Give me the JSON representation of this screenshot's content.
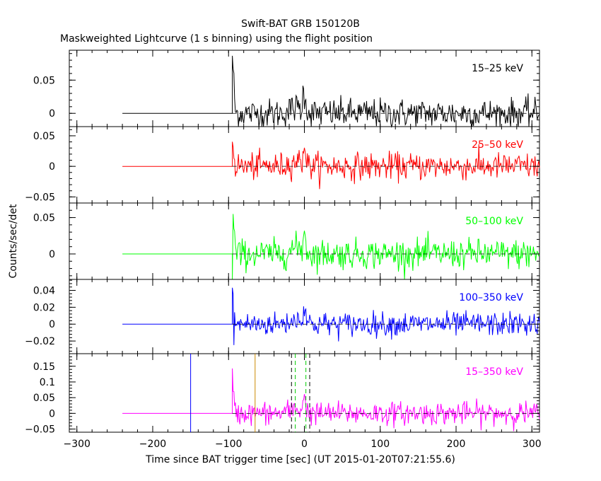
{
  "title": "Swift-BAT GRB 150120B",
  "subtitle": "Maskweighted Lightcurve (1 s binning) using the flight position",
  "xlabel": "Time since BAT trigger time [sec] (UT 2015-01-20T07:21:55.6)",
  "ylabel": "Counts/sec/det",
  "chart_data": {
    "type": "line",
    "xlim": [
      -310,
      310
    ],
    "x_ticks": [
      -300,
      -200,
      -100,
      0,
      100,
      200,
      300
    ],
    "data_start": -240,
    "burst_start": -95,
    "panels": [
      {
        "name": "15-25 keV",
        "label": "15–25 keV",
        "color": "#000000",
        "ylim": [
          -0.02,
          0.095
        ],
        "y_ticks": [
          0,
          0.05
        ],
        "y_tick_labels": [
          "0",
          "0.05"
        ],
        "noise": 0.011,
        "spike": 0.09
      },
      {
        "name": "25-50 keV",
        "label": "25–50 keV",
        "color": "#ff0000",
        "ylim": [
          -0.06,
          0.065
        ],
        "y_ticks": [
          -0.05,
          0,
          0.05
        ],
        "y_tick_labels": [
          "−0.05",
          "0",
          "0.05"
        ],
        "noise": 0.011,
        "spike": 0.06
      },
      {
        "name": "50-100 keV",
        "label": "50–100 keV",
        "color": "#00ff00",
        "ylim": [
          -0.035,
          0.07
        ],
        "y_ticks": [
          0,
          0.05
        ],
        "y_tick_labels": [
          "0",
          "0.05"
        ],
        "noise": 0.01,
        "spike": 0.06
      },
      {
        "name": "100-350 keV",
        "label": "100–350 keV",
        "color": "#0000ff",
        "ylim": [
          -0.035,
          0.053
        ],
        "y_ticks": [
          -0.02,
          0,
          0.02,
          0.04
        ],
        "y_tick_labels": [
          "−0.02",
          "0",
          "0.02",
          "0.04"
        ],
        "noise": 0.007,
        "spike": 0.045
      },
      {
        "name": "15-350 keV",
        "label": "15–350 keV",
        "color": "#ff00ff",
        "ylim": [
          -0.06,
          0.19
        ],
        "y_ticks": [
          -0.05,
          0,
          0.05,
          0.1,
          0.15
        ],
        "y_tick_labels": [
          "−0.05",
          "0",
          "0.05",
          "0.1",
          "0.15"
        ],
        "noise": 0.018,
        "spike": 0.13
      }
    ],
    "markers": [
      {
        "type": "solid",
        "color": "#0000ff",
        "x": -150
      },
      {
        "type": "solid",
        "color": "#cc8800",
        "x": -65
      },
      {
        "type": "dashed",
        "color": "#000000",
        "x": -17
      },
      {
        "type": "dashed",
        "color": "#00cc00",
        "x": -12
      },
      {
        "type": "dashed",
        "color": "#00cc00",
        "x": 2
      },
      {
        "type": "dashed",
        "color": "#000000",
        "x": 7
      }
    ]
  }
}
